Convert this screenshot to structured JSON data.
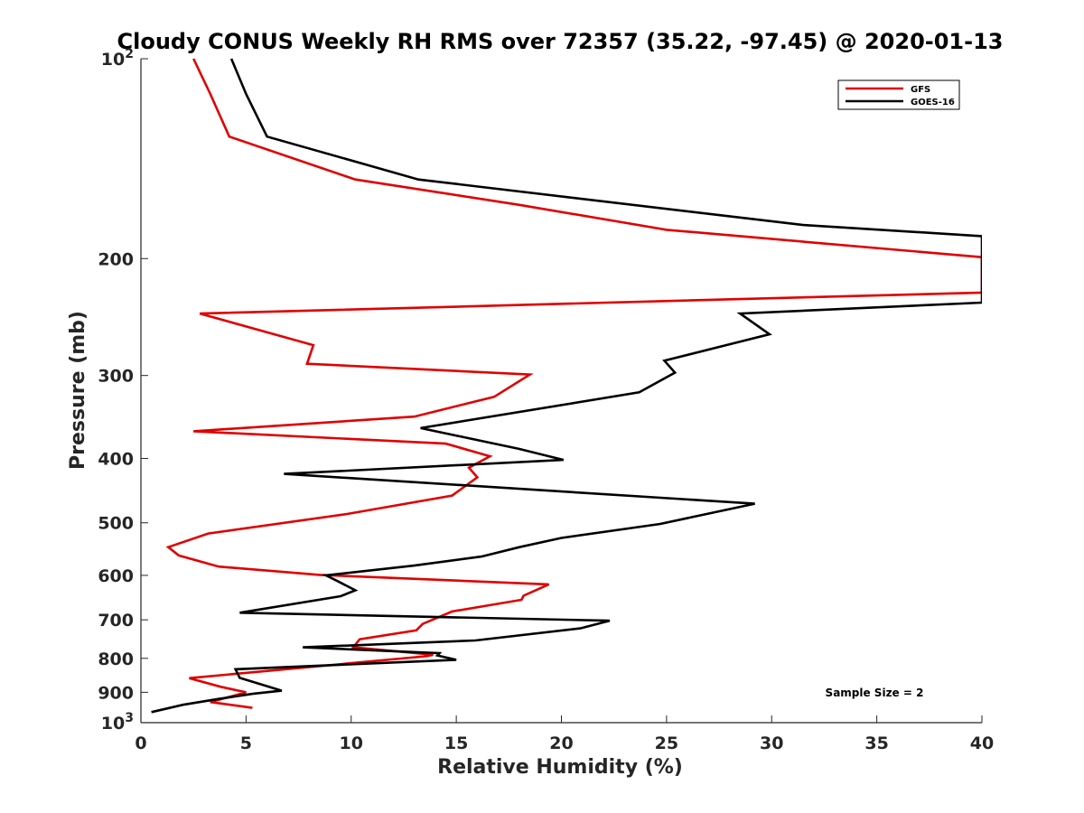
{
  "chart_data": {
    "type": "line",
    "title": "Cloudy CONUS Weekly RH RMS over 72357 (35.22, -97.45) @ 2020-01-13",
    "xlabel": "Relative Humidity (%)",
    "ylabel": "Pressure (mb)",
    "xlim": [
      0,
      40
    ],
    "ylim": [
      100,
      1000
    ],
    "y_scale": "log",
    "y_reversed": true,
    "x_ticks": [
      0,
      5,
      10,
      15,
      20,
      25,
      30,
      35,
      40
    ],
    "x_tick_labels": [
      "0",
      "5",
      "10",
      "15",
      "20",
      "25",
      "30",
      "35",
      "40"
    ],
    "y_ticks": [
      100,
      200,
      300,
      400,
      500,
      600,
      700,
      800,
      900,
      1000
    ],
    "y_tick_labels": [
      {
        "base": "10",
        "sup": "2"
      },
      {
        "base": "200",
        "sup": ""
      },
      {
        "base": "300",
        "sup": ""
      },
      {
        "base": "400",
        "sup": ""
      },
      {
        "base": "500",
        "sup": ""
      },
      {
        "base": "600",
        "sup": ""
      },
      {
        "base": "700",
        "sup": ""
      },
      {
        "base": "800",
        "sup": ""
      },
      {
        "base": "900",
        "sup": ""
      },
      {
        "base": "10",
        "sup": "3"
      }
    ],
    "grid": false,
    "legend_position": "top-right",
    "annotation": "Sample Size = 2",
    "series": [
      {
        "name": "GFS",
        "color": "#e00000",
        "x": [
          2.5,
          3.3,
          4.2,
          10.2,
          18,
          25,
          40,
          40,
          2.8,
          8.2,
          7.9,
          18.5,
          16.8,
          13,
          2.5,
          14.5,
          16.6,
          15.6,
          16,
          14.8,
          9.8,
          3.2,
          1.3,
          1.8,
          3.7,
          8.5,
          19.4,
          18.2,
          18.1,
          14.8,
          13.4,
          13.1,
          10.4,
          10.1,
          13.9,
          13.6,
          2.3,
          3.8,
          5.0,
          3.3,
          5.3
        ],
        "y": [
          100,
          113,
          131,
          152,
          166,
          181,
          199,
          225,
          242,
          270,
          288,
          299,
          323,
          346,
          364,
          380,
          397,
          413,
          427,
          455,
          485,
          519,
          544,
          560,
          582,
          599,
          619,
          644,
          653,
          680,
          710,
          726,
          749,
          770,
          790,
          794,
          857,
          883,
          900,
          931,
          950
        ]
      },
      {
        "name": "GOES-16",
        "color": "#000000",
        "x": [
          4.3,
          5.0,
          6.0,
          13.2,
          31.5,
          40,
          40,
          28.5,
          29.9,
          24.9,
          25.4,
          23.7,
          13.3,
          18.0,
          20.1,
          6.8,
          29.2,
          24.7,
          20.0,
          18.0,
          16.2,
          13.0,
          8.8,
          9.3,
          10.2,
          9.5,
          4.7,
          22.3,
          20.9,
          15.9,
          7.7,
          14.2,
          14.1,
          15.0,
          4.5,
          4.7,
          6.7,
          5.3,
          3.7,
          2.0,
          0.5
        ],
        "y": [
          100,
          113,
          131,
          152,
          178,
          185,
          233,
          242,
          260,
          285,
          297,
          318,
          360,
          387,
          402,
          422,
          468,
          502,
          527,
          544,
          562,
          580,
          600,
          611,
          632,
          645,
          683,
          702,
          721,
          752,
          770,
          786,
          792,
          804,
          831,
          856,
          895,
          905,
          921,
          940,
          964
        ]
      }
    ]
  }
}
